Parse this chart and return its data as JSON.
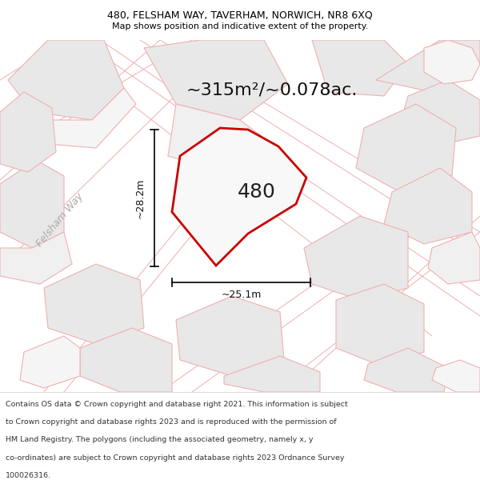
{
  "title_line1": "480, FELSHAM WAY, TAVERHAM, NORWICH, NR8 6XQ",
  "title_line2": "Map shows position and indicative extent of the property.",
  "area_label": "~315m²/~0.078ac.",
  "plot_number": "480",
  "dim_width": "~25.1m",
  "dim_height": "~28.2m",
  "road_label": "Felsham Way",
  "footer_lines": [
    "Contains OS data © Crown copyright and database right 2021. This information is subject",
    "to Crown copyright and database rights 2023 and is reproduced with the permission of",
    "HM Land Registry. The polygons (including the associated geometry, namely x, y",
    "co-ordinates) are subject to Crown copyright and database rights 2023 Ordnance Survey",
    "100026316."
  ],
  "map_bg": "#ffffff",
  "plot_fill": "#ffffff",
  "poly_fill": "#e8e8e8",
  "poly_edge": "#f0b0b0",
  "poly_edge_dark": "#d0d0d0",
  "plot_edge_color": "#cc0000",
  "road_stripe": "#e0e0e0",
  "title_fontsize": 9,
  "subtitle_fontsize": 8,
  "area_fontsize": 16,
  "plot_num_fontsize": 18,
  "dim_fontsize": 9,
  "road_fontsize": 9,
  "footer_fontsize": 6.8
}
